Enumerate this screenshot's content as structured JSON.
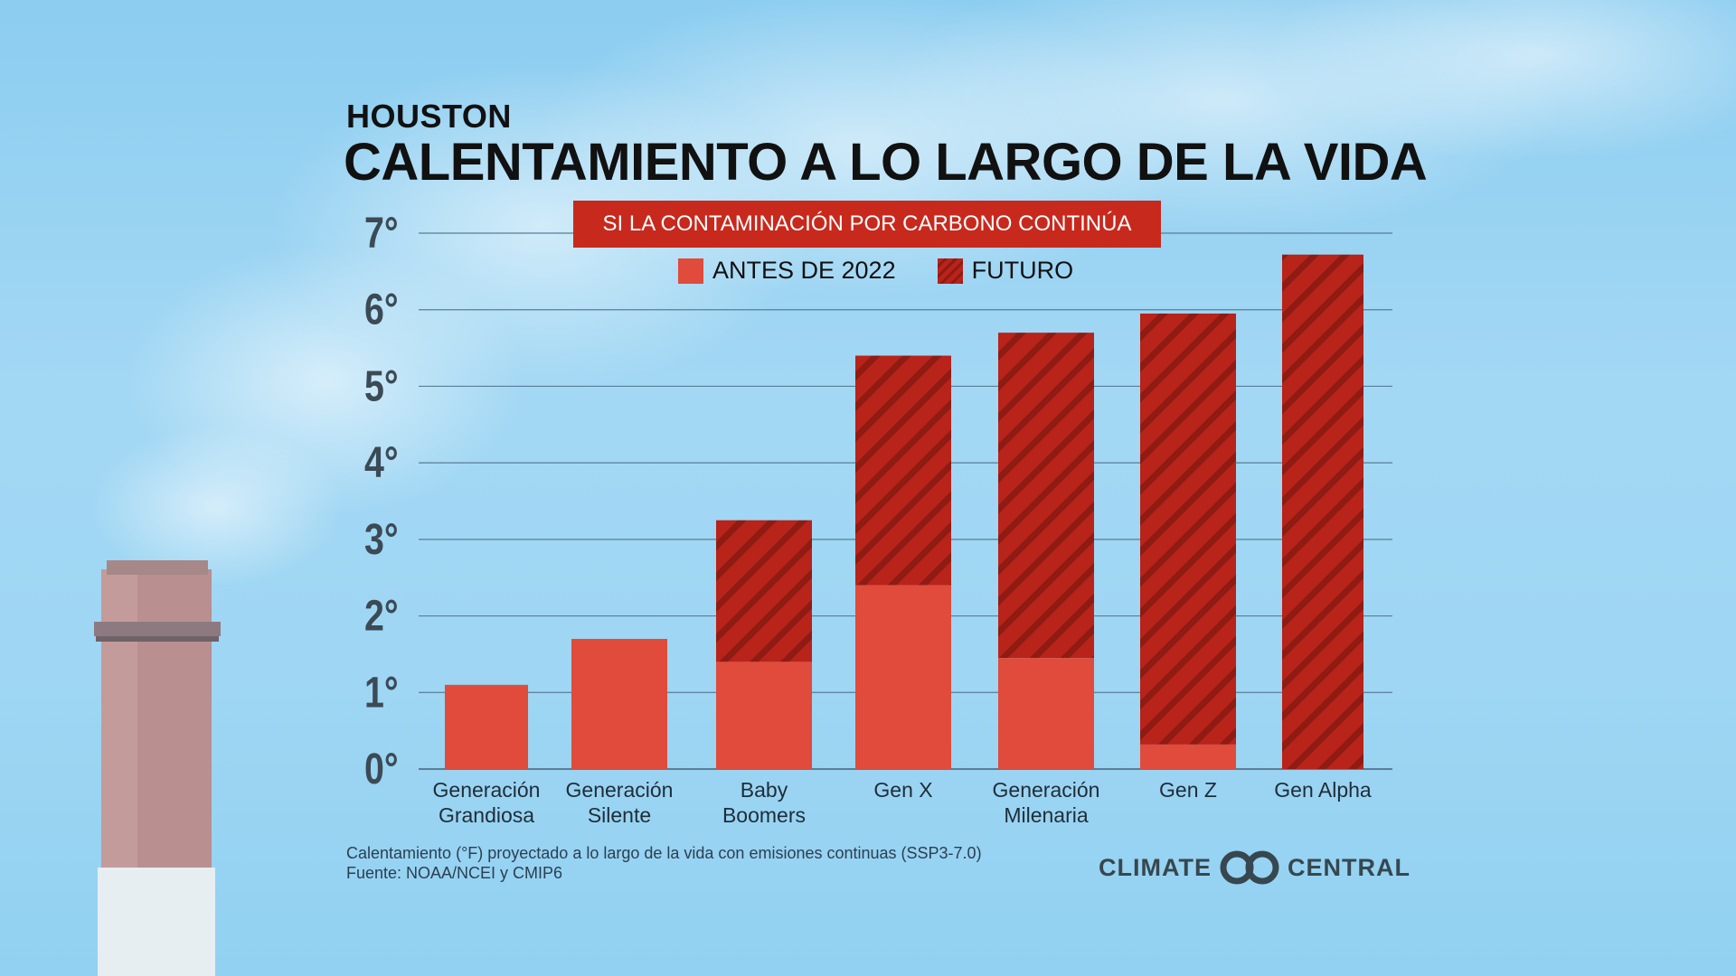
{
  "header": {
    "city": "HOUSTON",
    "title": "CALENTAMIENTO A LO LARGO DE LA VIDA",
    "scenario": "SI LA CONTAMINACIÓN POR CARBONO CONTINÚA"
  },
  "legend": {
    "past_label": "ANTES DE 2022",
    "future_label": "FUTURO"
  },
  "chart_data": {
    "type": "bar",
    "stacked": true,
    "title": "CALENTAMIENTO A LO LARGO DE LA VIDA",
    "subtitle": "SI LA CONTAMINACIÓN POR CARBONO CONTINÚA",
    "xlabel": "",
    "ylabel": "",
    "ylim": [
      0,
      7
    ],
    "y_ticks": [
      "0°",
      "1°",
      "2°",
      "3°",
      "4°",
      "5°",
      "6°",
      "7°"
    ],
    "grid": true,
    "categories": [
      [
        "Generación",
        "Grandiosa"
      ],
      [
        "Generación",
        "Silente"
      ],
      [
        "Baby",
        "Boomers"
      ],
      [
        "Gen X"
      ],
      [
        "Generación",
        "Milenaria"
      ],
      [
        "Gen Z"
      ],
      [
        "Gen Alpha"
      ]
    ],
    "series": [
      {
        "name": "ANTES DE 2022",
        "color": "#e04b3c",
        "values": [
          1.1,
          1.7,
          1.4,
          2.4,
          1.45,
          0.32,
          0.0
        ]
      },
      {
        "name": "FUTURO",
        "color": "#b8231a",
        "values": [
          0.0,
          0.0,
          1.85,
          3.0,
          4.25,
          5.63,
          6.72
        ]
      }
    ]
  },
  "footnote": {
    "line1": "Calentamiento (°F) proyectado a lo largo de la vida con emisiones continuas (SSP3-7.0)",
    "line2": "Fuente: NOAA/NCEI y CMIP6"
  },
  "logo": {
    "left": "CLIMATE",
    "right": "CENTRAL"
  },
  "colors": {
    "scenario_bg": "#c8291d",
    "past": "#e04b3c",
    "future": "#b8231a",
    "gridline": "#5a7d96"
  }
}
